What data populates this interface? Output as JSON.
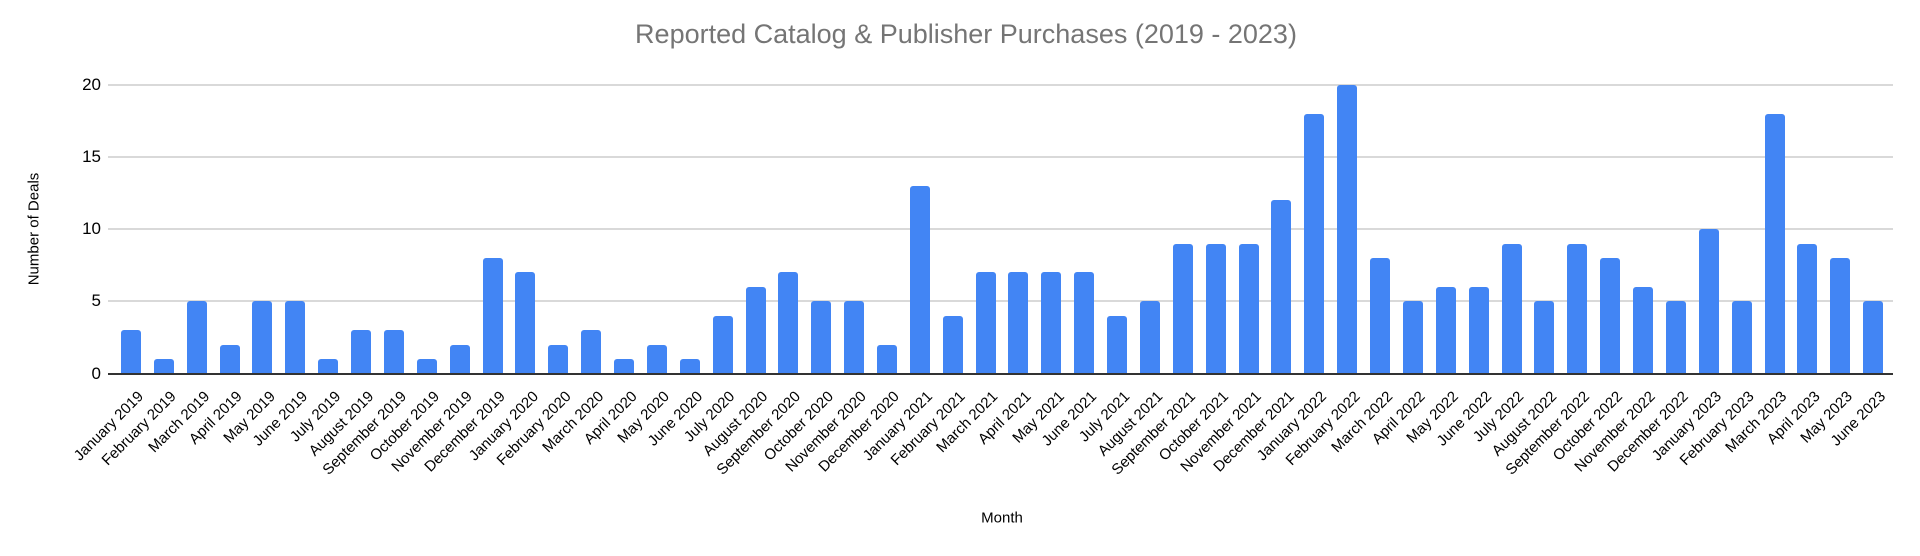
{
  "chart_data": {
    "type": "bar",
    "title": "Reported Catalog & Publisher Purchases (2019 - 2023)",
    "xlabel": "Month",
    "ylabel": "Number of Deals",
    "ylim": [
      0,
      20
    ],
    "yticks": [
      0,
      5,
      10,
      15,
      20
    ],
    "grid": true,
    "legend": "none",
    "bar_color": "#4285f4",
    "title_color": "#757575",
    "gridline_color": "#d9d9d9",
    "axis_line_color": "#333333",
    "tick_label_color": "#000000",
    "categories": [
      "January 2019",
      "February 2019",
      "March 2019",
      "April 2019",
      "May 2019",
      "June 2019",
      "July 2019",
      "August 2019",
      "September 2019",
      "October 2019",
      "November 2019",
      "December 2019",
      "January 2020",
      "February 2020",
      "March 2020",
      "April 2020",
      "May 2020",
      "June 2020",
      "July 2020",
      "August 2020",
      "September 2020",
      "October 2020",
      "November 2020",
      "December 2020",
      "January 2021",
      "February 2021",
      "March 2021",
      "April 2021",
      "May 2021",
      "June 2021",
      "July 2021",
      "August 2021",
      "September 2021",
      "October 2021",
      "November 2021",
      "December 2021",
      "January 2022",
      "February 2022",
      "March 2022",
      "April 2022",
      "May 2022",
      "June 2022",
      "July 2022",
      "August 2022",
      "September 2022",
      "October 2022",
      "November 2022",
      "December 2022",
      "January 2023",
      "February 2023",
      "March 2023",
      "April 2023",
      "May 2023",
      "June 2023"
    ],
    "values": [
      3,
      1,
      5,
      2,
      5,
      5,
      1,
      3,
      3,
      1,
      2,
      8,
      7,
      2,
      3,
      1,
      2,
      1,
      4,
      6,
      7,
      5,
      5,
      2,
      13,
      4,
      7,
      7,
      7,
      7,
      4,
      5,
      9,
      9,
      9,
      12,
      18,
      20,
      8,
      5,
      6,
      6,
      9,
      5,
      9,
      8,
      6,
      5,
      10,
      5,
      18,
      9,
      8,
      5
    ]
  }
}
